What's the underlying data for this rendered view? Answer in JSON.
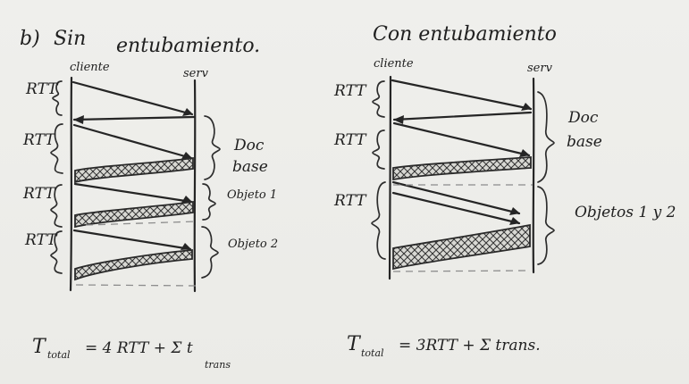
{
  "left": {
    "title_prefix": "b)",
    "title_word1": "Sin",
    "title_word2": "entubamiento.",
    "client_label": "cliente",
    "server_label": "serv",
    "rtt_labels": [
      "RTT",
      "RTT",
      "RTT",
      "RTT"
    ],
    "phase_labels": {
      "base1": "Doc",
      "base2": "base",
      "obj1": "Objeto 1",
      "obj2": "Objeto 2"
    },
    "formula": {
      "lead": "T",
      "sub": "total",
      "mid": "= 4 RTT + Σ t",
      "tail": "trans"
    }
  },
  "right": {
    "title": "Con entubamiento",
    "client_label": "cliente",
    "server_label": "serv",
    "rtt_labels": [
      "RTT",
      "RTT",
      "RTT"
    ],
    "phase_labels": {
      "base1": "Doc",
      "base2": "base",
      "objects": "Objetos 1 y 2"
    },
    "formula": {
      "lead": "T",
      "sub": "total",
      "mid": "= 3RTT + Σ trans."
    }
  }
}
